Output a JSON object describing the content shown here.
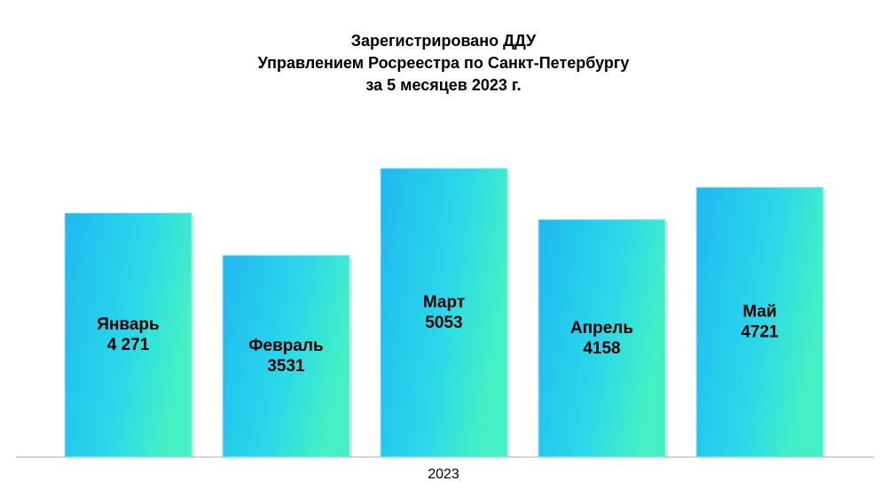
{
  "chart_data": {
    "type": "bar",
    "title": [
      "Зарегистрировано ДДУ",
      "Управлением Росреестра по Санкт-Петербургу",
      "за 5 месяцев 2023 г."
    ],
    "x_label": "2023",
    "categories": [
      "Январь",
      "Февраль",
      "Март",
      "Апрель",
      "Май"
    ],
    "values": [
      4271,
      3531,
      5053,
      4158,
      4721
    ],
    "value_labels": [
      "4 271",
      "3531",
      "5053",
      "4158",
      "4721"
    ],
    "color": "#1fb8f0"
  }
}
